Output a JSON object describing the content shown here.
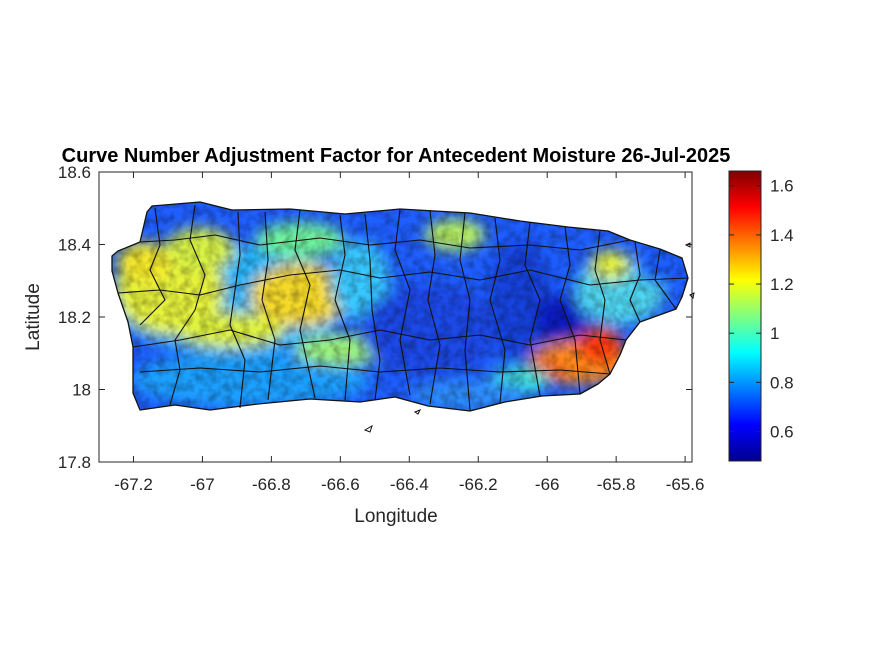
{
  "title": "Curve Number Adjustment Factor for Antecedent Moisture 26-Jul-2025",
  "map": {
    "xlabel": "Longitude",
    "ylabel": "Latitude",
    "xlim": [
      -67.3,
      -65.58
    ],
    "ylim": [
      17.8,
      18.6
    ],
    "xticks": [
      "-67.2",
      "-67",
      "-66.8",
      "-66.6",
      "-66.4",
      "-66.2",
      "-66",
      "-65.8",
      "-65.6"
    ],
    "xtick_values": [
      -67.2,
      -67,
      -66.8,
      -66.6,
      -66.4,
      -66.2,
      -66,
      -65.8,
      -65.6
    ],
    "yticks": [
      "17.8",
      "18",
      "18.2",
      "18.4",
      "18.6"
    ],
    "ytick_values": [
      17.8,
      18.0,
      18.2,
      18.4,
      18.6
    ],
    "colormap": "jet",
    "region": "Puerto Rico",
    "boundaries": "municipality outlines (black)"
  },
  "colorbar": {
    "range": [
      0.48,
      1.66
    ],
    "ticks": [
      "0.6",
      "0.8",
      "1",
      "1.2",
      "1.4",
      "1.6"
    ],
    "tick_values": [
      0.6,
      0.8,
      1.0,
      1.2,
      1.4,
      1.6
    ]
  }
}
